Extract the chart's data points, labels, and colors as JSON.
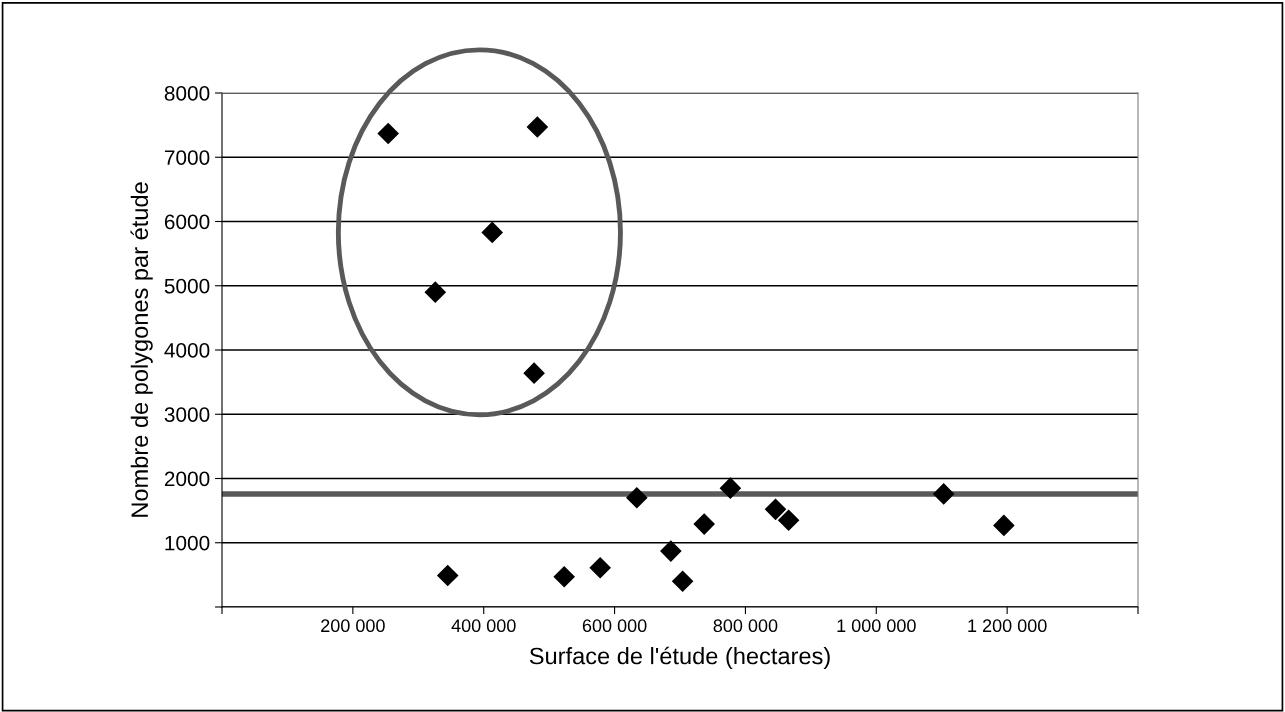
{
  "chart_data": {
    "type": "scatter",
    "xlabel": "Surface de l'étude (hectares)",
    "ylabel": "Nombre de polygones par étude",
    "x": [
      254000,
      482000,
      413000,
      326000,
      477000,
      345000,
      523000,
      578000,
      634000,
      686000,
      704000,
      737000,
      777000,
      846000,
      866000,
      1103000,
      1195000
    ],
    "series": [
      {
        "color": "#000000",
        "values": [
          7370,
          7470,
          5830,
          4900,
          3640,
          490,
          470,
          610,
          1700,
          870,
          400,
          1290,
          1850,
          1520,
          1350,
          1760,
          1270
        ]
      }
    ],
    "marker": "diamond",
    "xlim": [
      0,
      1400000
    ],
    "xticks": [
      {
        "value": 0,
        "label": null
      },
      {
        "value": 200000,
        "label": "200 000"
      },
      {
        "value": 400000,
        "label": "400 000"
      },
      {
        "value": 600000,
        "label": "600 000"
      },
      {
        "value": 800000,
        "label": "800 000"
      },
      {
        "value": 1000000,
        "label": "1 000 000"
      },
      {
        "value": 1200000,
        "label": "1 200 000"
      },
      {
        "value": 1400000,
        "label": null
      }
    ],
    "ylim": [
      0,
      8000
    ],
    "yticks": [
      {
        "value": 0,
        "label": null
      },
      1000,
      2000,
      3000,
      4000,
      5000,
      6000,
      7000,
      8000
    ],
    "grid": "y",
    "ref_lines": [
      {
        "axis": "y",
        "value": 1760,
        "color": "#595959"
      }
    ]
  }
}
